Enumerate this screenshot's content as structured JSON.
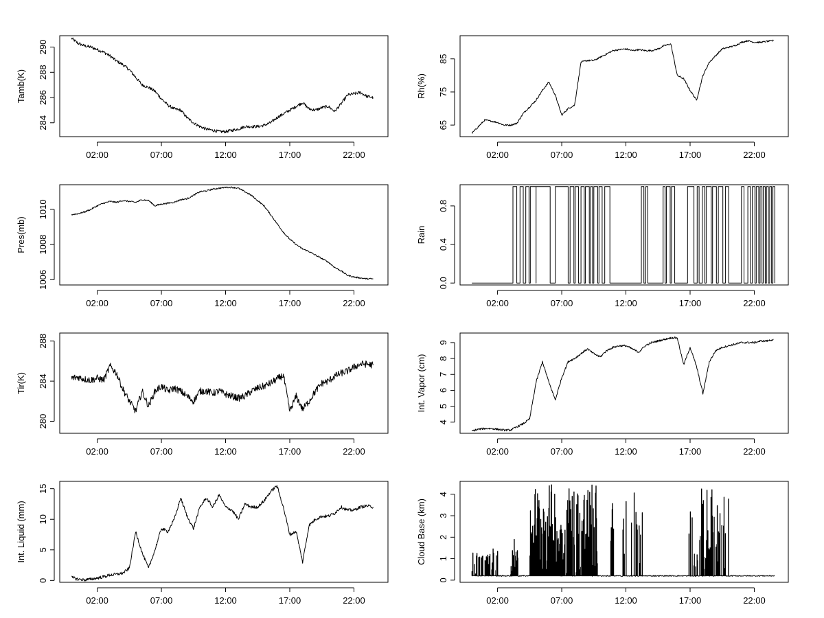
{
  "chart_data": [
    {
      "type": "line",
      "ylabel": "Tamb(K)",
      "x_ticks": [
        "02:00",
        "07:00",
        "12:00",
        "17:00",
        "22:00"
      ],
      "y_ticks": [
        "284",
        "286",
        "288",
        "290"
      ],
      "ylim": [
        282.9,
        290.9
      ],
      "x_hours": [
        0.0,
        0.5,
        1.0,
        1.5,
        2.0,
        2.5,
        3.0,
        3.5,
        4.0,
        4.5,
        5.0,
        5.5,
        6.0,
        6.5,
        7.0,
        7.5,
        8.0,
        8.5,
        9.0,
        9.5,
        10.0,
        10.5,
        11.0,
        11.5,
        12.0,
        12.5,
        13.0,
        13.5,
        14.0,
        14.5,
        15.0,
        15.5,
        16.0,
        16.5,
        17.0,
        17.5,
        18.0,
        18.5,
        19.0,
        19.5,
        20.0,
        20.5,
        21.0,
        21.5,
        22.0,
        22.5,
        23.0,
        23.5
      ],
      "values": [
        290.7,
        290.3,
        290.1,
        290.0,
        289.8,
        289.6,
        289.3,
        288.9,
        288.6,
        288.2,
        287.6,
        287.0,
        286.8,
        286.5,
        285.9,
        285.4,
        285.1,
        285.0,
        284.4,
        284.0,
        283.7,
        283.5,
        283.4,
        283.3,
        283.3,
        283.4,
        283.5,
        283.7,
        283.7,
        283.7,
        283.8,
        284.0,
        284.4,
        284.7,
        285.0,
        285.3,
        285.6,
        285.1,
        285.0,
        285.2,
        285.3,
        284.9,
        285.5,
        286.2,
        286.3,
        286.4,
        286.1,
        286.0
      ],
      "noise": 0.12
    },
    {
      "type": "line",
      "ylabel": "Rh(%)",
      "x_ticks": [
        "02:00",
        "07:00",
        "12:00",
        "17:00",
        "22:00"
      ],
      "y_ticks": [
        "65",
        "75",
        "85"
      ],
      "ylim": [
        61.5,
        92
      ],
      "x_hours": [
        0.0,
        0.5,
        1.0,
        1.5,
        2.0,
        2.5,
        3.0,
        3.5,
        4.0,
        4.5,
        5.0,
        5.5,
        6.0,
        6.5,
        7.0,
        7.5,
        8.0,
        8.5,
        9.0,
        9.5,
        10.0,
        10.5,
        11.0,
        11.5,
        12.0,
        12.5,
        13.0,
        13.5,
        14.0,
        14.5,
        15.0,
        15.5,
        16.0,
        16.5,
        17.0,
        17.5,
        18.0,
        18.5,
        19.0,
        19.5,
        20.0,
        20.5,
        21.0,
        21.5,
        22.0,
        22.5,
        23.0,
        23.5
      ],
      "values": [
        62.5,
        64.5,
        66.5,
        66.2,
        65.8,
        65.0,
        65.0,
        65.5,
        68.5,
        70.5,
        72.5,
        75.5,
        78.0,
        74.0,
        68.0,
        70.0,
        71.0,
        84.0,
        84.5,
        84.5,
        85.5,
        86.5,
        87.5,
        87.8,
        88.0,
        87.5,
        87.8,
        87.5,
        87.5,
        88.0,
        89.0,
        89.5,
        80.0,
        79.0,
        75.5,
        72.5,
        80.0,
        84.0,
        86.0,
        88.0,
        88.5,
        89.0,
        90.0,
        90.5,
        90.0,
        90.0,
        90.3,
        90.5
      ],
      "noise": 0.25
    },
    {
      "type": "line",
      "ylabel": "Pres(mb)",
      "x_ticks": [
        "02:00",
        "07:00",
        "12:00",
        "17:00",
        "22:00"
      ],
      "y_ticks": [
        "1006",
        "1008",
        "1010"
      ],
      "ylim": [
        1005.7,
        1011.4
      ],
      "x_hours": [
        0.0,
        0.5,
        1.0,
        1.5,
        2.0,
        2.5,
        3.0,
        3.5,
        4.0,
        4.5,
        5.0,
        5.5,
        6.0,
        6.5,
        7.0,
        7.5,
        8.0,
        8.5,
        9.0,
        9.5,
        10.0,
        10.5,
        11.0,
        11.5,
        12.0,
        12.5,
        13.0,
        13.5,
        14.0,
        14.5,
        15.0,
        15.5,
        16.0,
        16.5,
        17.0,
        17.5,
        18.0,
        18.5,
        19.0,
        19.5,
        20.0,
        20.5,
        21.0,
        21.5,
        22.0,
        22.5,
        23.0,
        23.5
      ],
      "values": [
        1009.7,
        1009.75,
        1009.85,
        1010.0,
        1010.2,
        1010.35,
        1010.45,
        1010.4,
        1010.5,
        1010.45,
        1010.4,
        1010.55,
        1010.5,
        1010.2,
        1010.3,
        1010.35,
        1010.4,
        1010.55,
        1010.6,
        1010.8,
        1011.0,
        1011.05,
        1011.15,
        1011.2,
        1011.25,
        1011.25,
        1011.2,
        1011.0,
        1010.8,
        1010.5,
        1010.2,
        1009.7,
        1009.2,
        1008.7,
        1008.3,
        1008.0,
        1007.75,
        1007.6,
        1007.4,
        1007.2,
        1007.0,
        1006.7,
        1006.5,
        1006.25,
        1006.15,
        1006.1,
        1006.05,
        1006.05
      ],
      "noise": 0.04
    },
    {
      "type": "line",
      "ylabel": "Rain",
      "x_ticks": [
        "02:00",
        "07:00",
        "12:00",
        "17:00",
        "22:00"
      ],
      "y_ticks": [
        "0.0",
        "0.4",
        "0.8"
      ],
      "ylim": [
        -0.02,
        1.02
      ],
      "step_intervals": [
        [
          3.2,
          3.5
        ],
        [
          3.75,
          4.0
        ],
        [
          4.2,
          4.45
        ],
        [
          4.55,
          5.0
        ],
        [
          5.0,
          6.1
        ],
        [
          6.5,
          7.5
        ],
        [
          7.65,
          7.95
        ],
        [
          8.05,
          8.3
        ],
        [
          8.5,
          8.75
        ],
        [
          8.85,
          9.15
        ],
        [
          9.25,
          9.4
        ],
        [
          9.5,
          9.8
        ],
        [
          9.9,
          10.15
        ],
        [
          10.35,
          10.75
        ],
        [
          13.2,
          13.4
        ],
        [
          13.55,
          13.7
        ],
        [
          14.9,
          15.05
        ],
        [
          15.15,
          15.45
        ],
        [
          15.55,
          15.8
        ],
        [
          16.8,
          17.3
        ],
        [
          17.55,
          17.7
        ],
        [
          17.95,
          18.15
        ],
        [
          18.25,
          18.65
        ],
        [
          18.75,
          19.05
        ],
        [
          19.2,
          19.55
        ],
        [
          19.75,
          20.0
        ],
        [
          21.0,
          21.2
        ],
        [
          21.5,
          21.7
        ],
        [
          21.85,
          22.05
        ],
        [
          22.15,
          22.35
        ],
        [
          22.45,
          22.6
        ],
        [
          22.7,
          22.85
        ],
        [
          22.95,
          23.1
        ],
        [
          23.2,
          23.35
        ],
        [
          23.45,
          23.6
        ]
      ],
      "noise": 0
    },
    {
      "type": "line",
      "ylabel": "Tir(K)",
      "x_ticks": [
        "02:00",
        "07:00",
        "12:00",
        "17:00",
        "22:00"
      ],
      "y_ticks": [
        "280",
        "284",
        "288"
      ],
      "ylim": [
        278.8,
        288.8
      ],
      "x_hours": [
        0.0,
        0.5,
        1.0,
        1.5,
        2.0,
        2.5,
        3.0,
        3.5,
        4.0,
        4.5,
        5.0,
        5.5,
        6.0,
        6.5,
        7.0,
        7.5,
        8.0,
        8.5,
        9.0,
        9.5,
        10.0,
        10.5,
        11.0,
        11.5,
        12.0,
        12.5,
        13.0,
        13.5,
        14.0,
        14.5,
        15.0,
        15.5,
        16.0,
        16.5,
        17.0,
        17.5,
        18.0,
        18.5,
        19.0,
        19.5,
        20.0,
        20.5,
        21.0,
        21.5,
        22.0,
        22.5,
        23.0,
        23.5
      ],
      "values": [
        284.3,
        284.4,
        284.2,
        284.1,
        284.3,
        284.1,
        285.5,
        284.8,
        283.2,
        282.0,
        281.0,
        283.0,
        281.5,
        283.0,
        283.5,
        283.0,
        283.3,
        283.0,
        282.5,
        282.0,
        283.0,
        283.0,
        282.8,
        283.0,
        282.7,
        282.5,
        282.3,
        282.5,
        283.0,
        283.3,
        283.5,
        283.8,
        284.2,
        284.6,
        281.0,
        282.5,
        281.2,
        282.0,
        283.0,
        283.8,
        284.0,
        284.5,
        284.8,
        285.0,
        285.4,
        285.7,
        285.7,
        285.6
      ],
      "noise": 0.35
    },
    {
      "type": "line",
      "ylabel": "Int. Vapor (cm)",
      "x_ticks": [
        "02:00",
        "07:00",
        "12:00",
        "17:00",
        "22:00"
      ],
      "y_ticks": [
        "4",
        "5",
        "6",
        "7",
        "8",
        "9"
      ],
      "ylim": [
        3.3,
        9.6
      ],
      "x_hours": [
        0.0,
        0.5,
        1.0,
        1.5,
        2.0,
        2.5,
        3.0,
        3.5,
        4.0,
        4.5,
        5.0,
        5.5,
        6.0,
        6.5,
        7.0,
        7.5,
        8.0,
        8.5,
        9.0,
        9.5,
        10.0,
        10.5,
        11.0,
        11.5,
        12.0,
        12.5,
        13.0,
        13.5,
        14.0,
        14.5,
        15.0,
        15.5,
        16.0,
        16.5,
        17.0,
        17.5,
        18.0,
        18.5,
        19.0,
        19.5,
        20.0,
        20.5,
        21.0,
        21.5,
        22.0,
        22.5,
        23.0,
        23.5
      ],
      "values": [
        3.45,
        3.55,
        3.6,
        3.6,
        3.55,
        3.5,
        3.5,
        3.7,
        3.9,
        4.2,
        6.5,
        7.8,
        6.5,
        5.4,
        6.8,
        7.8,
        8.0,
        8.3,
        8.6,
        8.3,
        8.1,
        8.5,
        8.7,
        8.8,
        8.8,
        8.6,
        8.4,
        8.8,
        9.0,
        9.1,
        9.2,
        9.3,
        9.3,
        7.6,
        8.7,
        7.5,
        5.8,
        7.8,
        8.5,
        8.7,
        8.8,
        8.9,
        9.0,
        9.0,
        9.0,
        9.1,
        9.1,
        9.2
      ],
      "noise": 0.06
    },
    {
      "type": "line",
      "ylabel": "Int. Liquid (mm)",
      "x_ticks": [
        "02:00",
        "07:00",
        "12:00",
        "17:00",
        "22:00"
      ],
      "y_ticks": [
        "0",
        "5",
        "10",
        "15"
      ],
      "ylim": [
        -0.3,
        16.2
      ],
      "x_hours": [
        0.0,
        0.5,
        1.0,
        1.5,
        2.0,
        2.5,
        3.0,
        3.5,
        4.0,
        4.5,
        5.0,
        5.5,
        6.0,
        6.5,
        7.0,
        7.5,
        8.0,
        8.5,
        9.0,
        9.5,
        10.0,
        10.5,
        11.0,
        11.5,
        12.0,
        12.5,
        13.0,
        13.5,
        14.0,
        14.5,
        15.0,
        15.5,
        16.0,
        16.5,
        17.0,
        17.5,
        18.0,
        18.5,
        19.0,
        19.5,
        20.0,
        20.5,
        21.0,
        21.5,
        22.0,
        22.5,
        23.0,
        23.5
      ],
      "values": [
        0.5,
        0.2,
        0.1,
        0.2,
        0.4,
        0.6,
        0.9,
        1.0,
        1.2,
        2.0,
        8.0,
        4.5,
        2.0,
        5.0,
        8.5,
        8.0,
        10.0,
        13.5,
        10.5,
        8.5,
        12.0,
        13.5,
        12.0,
        14.0,
        12.0,
        11.5,
        10.0,
        12.5,
        12.0,
        12.0,
        13.0,
        14.5,
        15.5,
        12.0,
        7.5,
        8.0,
        3.0,
        9.0,
        10.0,
        10.5,
        10.5,
        11.0,
        12.0,
        11.5,
        11.5,
        12.0,
        12.2,
        12.0
      ],
      "noise": 0.25
    },
    {
      "type": "line",
      "ylabel": "Cloud Base (km)",
      "x_ticks": [
        "02:00",
        "07:00",
        "12:00",
        "17:00",
        "22:00"
      ],
      "y_ticks": [
        "0",
        "1",
        "2",
        "3",
        "4"
      ],
      "ylim": [
        -0.1,
        4.6
      ],
      "spike_regions": [
        [
          0.0,
          2.0,
          0.6,
          1.5
        ],
        [
          3.0,
          3.6,
          0.9,
          1.9
        ],
        [
          4.5,
          6.5,
          1.0,
          4.5
        ],
        [
          6.5,
          7.2,
          0.8,
          3.5
        ],
        [
          7.2,
          9.8,
          0.8,
          4.5
        ],
        [
          10.7,
          11.1,
          0.5,
          4.3
        ],
        [
          11.7,
          12.1,
          0.5,
          4.3
        ],
        [
          12.4,
          13.4,
          0.5,
          4.3
        ],
        [
          16.7,
          17.6,
          0.5,
          4.5
        ],
        [
          17.6,
          18.7,
          0.5,
          4.3
        ],
        [
          18.7,
          20.1,
          0.5,
          4.0
        ]
      ],
      "base_value": 0.2,
      "noise": 0
    }
  ]
}
